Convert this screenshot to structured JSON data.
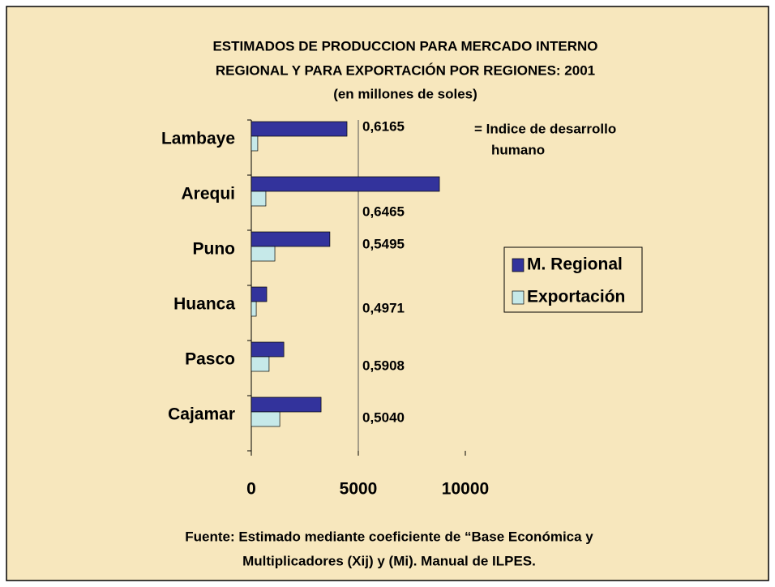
{
  "chart_data": {
    "type": "hbar",
    "title_lines": [
      "ESTIMADOS DE PRODUCCION PARA MERCADO INTERNO",
      "REGIONAL Y PARA EXPORTACIÓN POR REGIONES: 2001"
    ],
    "subtitle": "(en millones de soles)",
    "categories": [
      "Lambaye",
      "Arequi",
      "Puno",
      "Huanca",
      "Pasco",
      "Cajamar"
    ],
    "series": [
      {
        "name": "M. Regional",
        "color": "#33339c",
        "values": [
          4470,
          8790,
          3670,
          720,
          1520,
          3260
        ]
      },
      {
        "name": "Exportación",
        "color": "#c6e9e9",
        "values": [
          300,
          680,
          1100,
          230,
          830,
          1330
        ]
      }
    ],
    "xlim": [
      0,
      10000
    ],
    "xticks": [
      0,
      5000,
      10000
    ],
    "grid": true,
    "legend": "right",
    "idh_labels": [
      "0,6165",
      "0,6465",
      "0,5495",
      "0,4971",
      "0,5908",
      "0,5040"
    ],
    "note_lines": [
      "= Indice de desarrollo",
      "humano"
    ],
    "source_lines": [
      "Fuente: Estimado mediante coeficiente de “Base Económica y",
      "Multiplicadores (Xij) y (Mi). Manual de ILPES."
    ]
  }
}
